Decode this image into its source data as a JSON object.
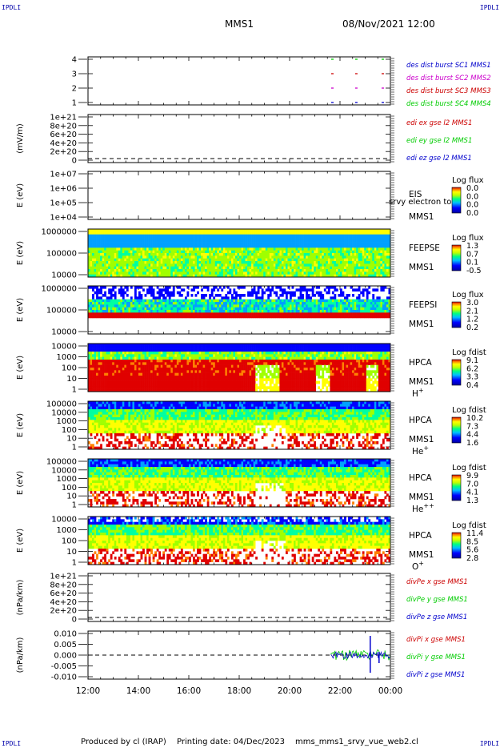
{
  "corners": {
    "tl": "IPDLI",
    "tr": "IPDLI",
    "bl": "IPDLI",
    "br": "IPDLI"
  },
  "header": {
    "spacecraft": "MMS1",
    "datetime": "08/Nov/2021 12:00"
  },
  "footer": {
    "producer": "Produced by cl (IRAP)",
    "printed": "Printing date: 04/Dec/2023",
    "script": "mms_mms1_srvy_vue_web2.cl"
  },
  "colors": {
    "series": [
      "#0000cc",
      "#cc00cc",
      "#cc0000",
      "#00cc00"
    ]
  },
  "chart_data": {
    "type": "multi-panel time series",
    "x_ticks": [
      "12:00",
      "14:00",
      "16:00",
      "18:00",
      "20:00",
      "22:00",
      "00:00"
    ],
    "panels": [
      {
        "kind": "line",
        "ylabel": "",
        "yticks": [
          "4",
          "3",
          "2",
          "1"
        ],
        "legend": [
          "des dist burst SC1 MMS1",
          "des dist burst SC2 MMS2",
          "des dist burst SC3 MMS3",
          "des dist burst SC4 MMS4"
        ],
        "legend_colors": [
          "#0000cc",
          "#cc00cc",
          "#cc0000",
          "#00cc00"
        ],
        "x_range": [
          0,
          12
        ],
        "y_range": [
          0.5,
          4.5
        ],
        "series": [
          {
            "name": "des dist burst SC1 MMS1",
            "color": "#0000cc",
            "x": [
              9.65,
              10.6,
              11.65
            ],
            "y": [
              1,
              1,
              1
            ]
          },
          {
            "name": "des dist burst SC2 MMS2",
            "color": "#cc00cc",
            "x": [
              9.65,
              10.6,
              11.65
            ],
            "y": [
              2,
              2,
              2
            ]
          },
          {
            "name": "des dist burst SC3 MMS3",
            "color": "#cc0000",
            "x": [
              9.65,
              10.6,
              11.65
            ],
            "y": [
              3,
              3,
              3
            ]
          },
          {
            "name": "des dist burst SC4 MMS4",
            "color": "#00cc00",
            "x": [
              9.65,
              10.6,
              11.65
            ],
            "y": [
              4,
              4,
              4
            ]
          }
        ]
      },
      {
        "kind": "line",
        "ylabel": "(mV/m)",
        "yticks": [
          "1e+21",
          "8e+20",
          "6e+20",
          "4e+20",
          "2e+20",
          "0"
        ],
        "legend": [
          "edi ex gse l2 MMS1",
          "edi ey gse l2 MMS1",
          "edi ez gse l2 MMS1"
        ],
        "legend_colors": [
          "#cc0000",
          "#00cc00",
          "#0000cc"
        ],
        "dashed_zero": true
      },
      {
        "kind": "spectrogram-empty",
        "ylabel": "E (eV)",
        "yticks": [
          "1e+07",
          "1e+06",
          "1e+05",
          "1e+04"
        ],
        "label": [
          "EIS",
          "MMS1"
        ],
        "overlay_text": "srvy electron to",
        "colorbar": {
          "title": "Log flux",
          "ticks": [
            "0.0",
            "0.0",
            "0.0",
            "0.0"
          ]
        }
      },
      {
        "kind": "spectrogram",
        "ylabel": "E (eV)",
        "yticks": [
          "1000000",
          "100000",
          "10000"
        ],
        "label": [
          "FEEPSE",
          "MMS1"
        ],
        "colorbar": {
          "title": "Log flux",
          "ticks": [
            "1.3",
            "0.7",
            "0.1",
            "-0.5"
          ]
        }
      },
      {
        "kind": "spectrogram",
        "ylabel": "E (eV)",
        "yticks": [
          "1000000",
          "100000",
          "10000"
        ],
        "label": [
          "FEEPSI",
          "MMS1"
        ],
        "colorbar": {
          "title": "Log flux",
          "ticks": [
            "3.0",
            "2.1",
            "1.2",
            "0.2"
          ]
        }
      },
      {
        "kind": "spectrogram",
        "ylabel": "E (eV)",
        "yticks": [
          "10000",
          "1000",
          "100",
          "10",
          "1"
        ],
        "label": [
          "HPCA",
          "MMS1"
        ],
        "species": "H",
        "charge": "+",
        "colorbar": {
          "title": "Log fdist",
          "ticks": [
            "9.1",
            "6.2",
            "3.3",
            "0.4"
          ]
        }
      },
      {
        "kind": "spectrogram",
        "ylabel": "E (eV)",
        "yticks": [
          "100000",
          "10000",
          "1000",
          "100",
          "10",
          "1"
        ],
        "label": [
          "HPCA",
          "MMS1"
        ],
        "species": "He",
        "charge": "+",
        "colorbar": {
          "title": "Log fdist",
          "ticks": [
            "10.2",
            "7.3",
            "4.4",
            "1.6"
          ]
        }
      },
      {
        "kind": "spectrogram",
        "ylabel": "E (eV)",
        "yticks": [
          "100000",
          "10000",
          "1000",
          "100",
          "10",
          "1"
        ],
        "label": [
          "HPCA",
          "MMS1"
        ],
        "species": "He",
        "charge": "++",
        "colorbar": {
          "title": "Log fdist",
          "ticks": [
            "9.9",
            "7.0",
            "4.1",
            "1.3"
          ]
        }
      },
      {
        "kind": "spectrogram",
        "ylabel": "E (eV)",
        "yticks": [
          "10000",
          "1000",
          "100",
          "10",
          "1"
        ],
        "label": [
          "HPCA",
          "MMS1"
        ],
        "species": "O",
        "charge": "+",
        "colorbar": {
          "title": "Log fdist",
          "ticks": [
            "11.4",
            "8.5",
            "5.6",
            "2.8"
          ]
        }
      },
      {
        "kind": "line",
        "ylabel": "(nPa/km)",
        "yticks": [
          "1e+21",
          "8e+20",
          "6e+20",
          "4e+20",
          "2e+20",
          "0"
        ],
        "legend": [
          "divPe x gse MMS1",
          "divPe y gse MMS1",
          "divPe z gse MMS1"
        ],
        "legend_colors": [
          "#cc0000",
          "#00cc00",
          "#0000cc"
        ],
        "dashed_zero": true
      },
      {
        "kind": "line",
        "ylabel": "(nPa/km)",
        "yticks": [
          "0.010",
          "0.005",
          "0.000",
          "-0.005",
          "-0.010"
        ],
        "legend": [
          "divPi x gse MMS1",
          "divPi y gse MMS1",
          "divPi z gse MMS1"
        ],
        "legend_colors": [
          "#cc0000",
          "#00cc00",
          "#0000cc"
        ],
        "dashed_zero": true,
        "active_window": [
          9.65,
          12.0
        ]
      }
    ]
  }
}
